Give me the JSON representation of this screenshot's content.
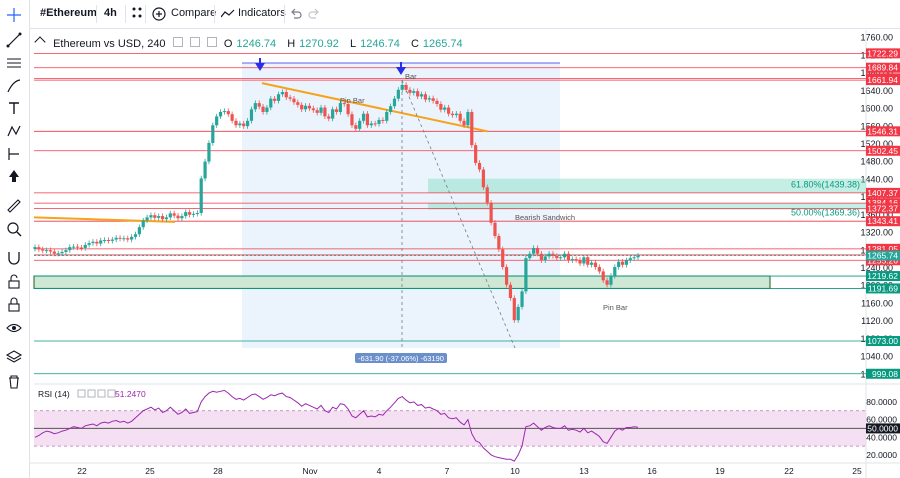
{
  "toolbar": {
    "symbol": "#Ethereum",
    "interval": "4h",
    "compare_label": "Compare",
    "indicators_label": "Indicators"
  },
  "sidebar": {
    "icons": [
      "crosshair-icon",
      "trend-line-icon",
      "fib-icon",
      "brush-icon",
      "text-icon",
      "pattern-icon",
      "measure-icon",
      "arrow-icon",
      "ruler-icon",
      "zoom-icon",
      "magnet-icon",
      "lock-draw-icon",
      "lock-icon",
      "eye-icon",
      "layers-icon",
      "trash-icon"
    ]
  },
  "legend": {
    "title": "Ethereum vs USD, 240",
    "o_label": "O",
    "o_value": "1246.74",
    "h_label": "H",
    "h_value": "1270.92",
    "l_label": "L",
    "l_value": "1246.74",
    "c_label": "C",
    "c_value": "1265.74"
  },
  "colors": {
    "up": "#26a69a",
    "down": "#ef5350",
    "trend": "#f7a21b",
    "rsi": "#9c27b0",
    "level_red": "#f23645",
    "level_green": "#089981",
    "arrow": "#2a2ee6"
  },
  "chart_data": {
    "type": "candlestick",
    "title": "Ethereum vs USD, 240",
    "ylim": [
      985,
      1775
    ],
    "y_ticks": [
      1000,
      1040,
      1080,
      1120,
      1160,
      1200,
      1240,
      1280,
      1320,
      1360,
      1400,
      1440,
      1480,
      1520,
      1560,
      1600,
      1640,
      1680,
      1720,
      1760
    ],
    "y_tick_labels": [
      "1000.00",
      "1040.00",
      "1080.00",
      "1120.00",
      "1160.00",
      "1200.00",
      "1240.00",
      "1280.00",
      "1320.00",
      "1360.00",
      "1400.00",
      "1440.00",
      "1480.00",
      "1520.00",
      "1560.00",
      "1600.00",
      "1640.00",
      "1680.00",
      "1720.00",
      "1760.00"
    ],
    "x_ticks": [
      "22",
      "25",
      "28",
      "Nov",
      "4",
      "7",
      "10",
      "13",
      "16",
      "19",
      "22",
      "25"
    ],
    "close_series": [
      1285,
      1280,
      1277,
      1278,
      1275,
      1270,
      1271,
      1274,
      1278,
      1285,
      1286,
      1284,
      1283,
      1290,
      1294,
      1297,
      1293,
      1300,
      1301,
      1299,
      1302,
      1306,
      1304,
      1305,
      1302,
      1308,
      1314,
      1330,
      1345,
      1352,
      1357,
      1351,
      1355,
      1348,
      1352,
      1361,
      1356,
      1350,
      1355,
      1364,
      1358,
      1360,
      1362,
      1440,
      1478,
      1520,
      1560,
      1580,
      1590,
      1592,
      1585,
      1570,
      1560,
      1564,
      1558,
      1570,
      1596,
      1610,
      1602,
      1590,
      1600,
      1620,
      1615,
      1630,
      1635,
      1623,
      1620,
      1612,
      1606,
      1596,
      1604,
      1598,
      1594,
      1588,
      1600,
      1580,
      1575,
      1596,
      1590,
      1610,
      1608,
      1585,
      1560,
      1552,
      1570,
      1586,
      1560,
      1564,
      1563,
      1572,
      1570,
      1590,
      1603,
      1620,
      1640,
      1651,
      1640,
      1633,
      1637,
      1625,
      1630,
      1618,
      1621,
      1615,
      1608,
      1595,
      1600,
      1586,
      1583,
      1586,
      1570,
      1560,
      1590,
      1515,
      1475,
      1460,
      1420,
      1385,
      1340,
      1310,
      1280,
      1240,
      1200,
      1170,
      1120,
      1150,
      1185,
      1260,
      1270,
      1283,
      1270,
      1255,
      1264,
      1270,
      1265,
      1260,
      1262,
      1270,
      1255,
      1258,
      1256,
      1248,
      1262,
      1245,
      1250,
      1240,
      1230,
      1210,
      1200,
      1220,
      1240,
      1252,
      1245,
      1255,
      1260,
      1262,
      1265.74
    ],
    "price_levels": [
      {
        "label": "1722.29",
        "value": 1722.29,
        "color": "red"
      },
      {
        "label": "1689.84",
        "value": 1689.84,
        "color": "red"
      },
      {
        "label": "1665.84",
        "value": 1665.84,
        "color": "red"
      },
      {
        "label": "1661.94",
        "value": 1661.94,
        "color": "red"
      },
      {
        "label": "1546.31",
        "value": 1546.31,
        "color": "red"
      },
      {
        "label": "1502.45",
        "value": 1502.45,
        "color": "red"
      },
      {
        "label": "1407.37",
        "value": 1407.37,
        "color": "red"
      },
      {
        "label": "1384.16",
        "value": 1384.16,
        "color": "red"
      },
      {
        "label": "1372.37",
        "value": 1372.37,
        "color": "red"
      },
      {
        "label": "1343.41",
        "value": 1343.41,
        "color": "red"
      },
      {
        "label": "1281.05",
        "value": 1281.05,
        "color": "red"
      },
      {
        "label": "1267.30",
        "value": 1267.3,
        "color": "red"
      },
      {
        "label": "1255.26",
        "value": 1255.26,
        "color": "red"
      },
      {
        "label": "1219.62",
        "value": 1219.62,
        "color": "green"
      },
      {
        "label": "1191.69",
        "value": 1191.69,
        "color": "green"
      },
      {
        "label": "1073.00",
        "value": 1073.0,
        "color": "green"
      },
      {
        "label": "999.08",
        "value": 999.08,
        "color": "green"
      }
    ],
    "current_price": {
      "label": "1265.74",
      "value": 1265.74
    },
    "fib_zones": [
      {
        "label": "61.80%(1439.38)",
        "top": 1439.38,
        "bottom": 1407.37
      },
      {
        "label": "50.00%(1369.36)",
        "top": 1384.16,
        "bottom": 1369.36
      }
    ],
    "demand_zone": {
      "top": 1219.62,
      "bottom": 1191.69
    },
    "annotations": [
      "Pin Bar",
      "Bar",
      "Bearish Sandwich",
      "Pin Bar"
    ],
    "measure_label": "-631.90 (-37.06%) -63190",
    "rsi": {
      "label": "RSI (14)",
      "value_label": "51.2470",
      "ylim": [
        12,
        98
      ],
      "y_tick_labels": [
        "80.0000",
        "60.0000",
        "40.0000",
        "20.0000"
      ],
      "y_ticks": [
        80,
        60,
        40,
        20
      ],
      "marker_label": "50.0000",
      "upper_band": 70,
      "lower_band": 30,
      "values": [
        40,
        42,
        45,
        47,
        46,
        44,
        45,
        47,
        48,
        50,
        52,
        51,
        50,
        53,
        54,
        55,
        53,
        56,
        57,
        56,
        58,
        59,
        57,
        58,
        56,
        58,
        62,
        66,
        70,
        72,
        74,
        71,
        73,
        68,
        70,
        74,
        70,
        66,
        68,
        72,
        67,
        68,
        69,
        80,
        86,
        90,
        92,
        91,
        92,
        93,
        90,
        86,
        83,
        84,
        82,
        85,
        88,
        89,
        86,
        83,
        85,
        88,
        87,
        89,
        90,
        86,
        85,
        82,
        79,
        75,
        78,
        76,
        74,
        72,
        76,
        70,
        68,
        74,
        72,
        78,
        77,
        72,
        64,
        62,
        66,
        70,
        63,
        64,
        63,
        66,
        65,
        70,
        74,
        79,
        84,
        86,
        82,
        79,
        80,
        76,
        77,
        73,
        74,
        72,
        70,
        66,
        67,
        62,
        61,
        62,
        57,
        54,
        60,
        44,
        36,
        34,
        28,
        24,
        20,
        18,
        17,
        16,
        15,
        15,
        13,
        20,
        30,
        52,
        53,
        56,
        52,
        48,
        51,
        53,
        51,
        50,
        50,
        53,
        48,
        49,
        48,
        46,
        50,
        45,
        47,
        44,
        41,
        35,
        33,
        40,
        47,
        50,
        48,
        51,
        51,
        52,
        51.247
      ]
    }
  }
}
